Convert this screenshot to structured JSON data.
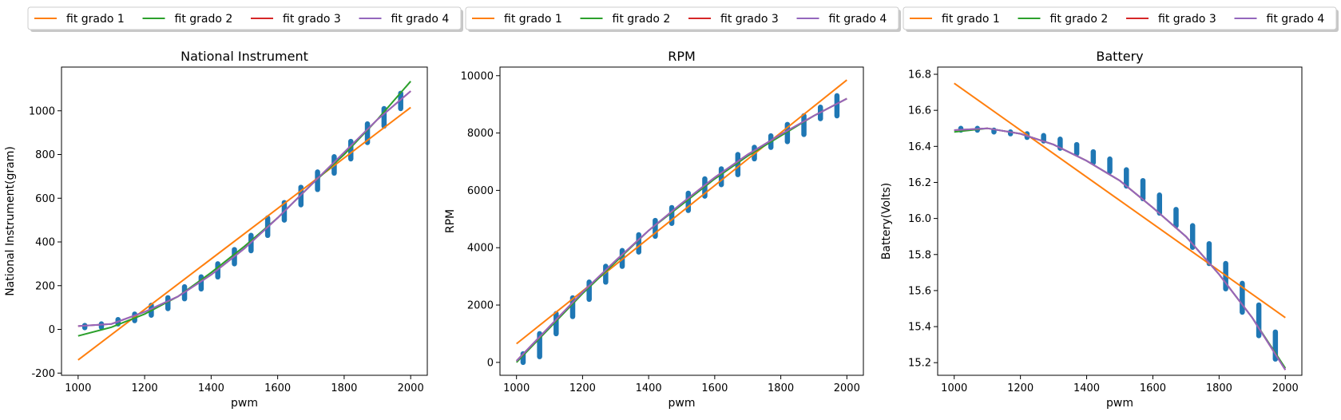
{
  "chart_data": [
    {
      "type": "scatter",
      "title": "National Instrument",
      "xlabel": "pwm",
      "ylabel": "National Instrument(gram)",
      "xlim": [
        950,
        2050
      ],
      "ylim": [
        -210,
        1200
      ],
      "xticks": [
        1000,
        1200,
        1400,
        1600,
        1800,
        2000
      ],
      "yticks": [
        -200,
        0,
        200,
        400,
        600,
        800,
        1000
      ],
      "scatter_points": [
        {
          "x": 1020,
          "y_min": 8,
          "y_max": 18
        },
        {
          "x": 1070,
          "y_min": 10,
          "y_max": 25
        },
        {
          "x": 1120,
          "y_min": 25,
          "y_max": 45
        },
        {
          "x": 1170,
          "y_min": 40,
          "y_max": 70
        },
        {
          "x": 1220,
          "y_min": 65,
          "y_max": 110
        },
        {
          "x": 1270,
          "y_min": 95,
          "y_max": 145
        },
        {
          "x": 1320,
          "y_min": 140,
          "y_max": 195
        },
        {
          "x": 1370,
          "y_min": 185,
          "y_max": 240
        },
        {
          "x": 1420,
          "y_min": 240,
          "y_max": 300
        },
        {
          "x": 1470,
          "y_min": 300,
          "y_max": 365
        },
        {
          "x": 1520,
          "y_min": 360,
          "y_max": 430
        },
        {
          "x": 1570,
          "y_min": 430,
          "y_max": 510
        },
        {
          "x": 1620,
          "y_min": 500,
          "y_max": 580
        },
        {
          "x": 1670,
          "y_min": 570,
          "y_max": 650
        },
        {
          "x": 1720,
          "y_min": 640,
          "y_max": 720
        },
        {
          "x": 1770,
          "y_min": 715,
          "y_max": 790
        },
        {
          "x": 1820,
          "y_min": 780,
          "y_max": 860
        },
        {
          "x": 1870,
          "y_min": 855,
          "y_max": 940
        },
        {
          "x": 1920,
          "y_min": 930,
          "y_max": 1010
        },
        {
          "x": 1970,
          "y_min": 1010,
          "y_max": 1080
        }
      ],
      "series": [
        {
          "name": "fit grado 1",
          "color": "#ff7f0e",
          "x": [
            1000,
            2000
          ],
          "y": [
            -140,
            1015
          ]
        },
        {
          "name": "fit grado 2",
          "color": "#2ca02c",
          "x": [
            1000,
            1100,
            1200,
            1300,
            1400,
            1500,
            1600,
            1700,
            1800,
            1900,
            2000
          ],
          "y": [
            -30,
            10,
            70,
            150,
            260,
            380,
            510,
            660,
            800,
            960,
            1135
          ]
        },
        {
          "name": "fit grado 3",
          "color": "#d62728",
          "x": [
            1000,
            1100,
            1200,
            1300,
            1400,
            1500,
            1600,
            1700,
            1800,
            1900,
            2000
          ],
          "y": [
            15,
            25,
            80,
            150,
            250,
            370,
            510,
            660,
            810,
            960,
            1090
          ]
        },
        {
          "name": "fit grado 4",
          "color": "#9467bd",
          "x": [
            1000,
            1100,
            1200,
            1300,
            1400,
            1500,
            1600,
            1700,
            1800,
            1900,
            2000
          ],
          "y": [
            15,
            25,
            80,
            150,
            250,
            370,
            510,
            660,
            810,
            960,
            1090
          ]
        }
      ]
    },
    {
      "type": "scatter",
      "title": "RPM",
      "xlabel": "pwm",
      "ylabel": "RPM",
      "xlim": [
        950,
        2050
      ],
      "ylim": [
        -450,
        10300
      ],
      "xticks": [
        1000,
        1200,
        1400,
        1600,
        1800,
        2000
      ],
      "yticks": [
        0,
        2000,
        4000,
        6000,
        8000,
        10000
      ],
      "scatter_points": [
        {
          "x": 1020,
          "y_min": 0,
          "y_max": 300
        },
        {
          "x": 1070,
          "y_min": 200,
          "y_max": 1000
        },
        {
          "x": 1120,
          "y_min": 1000,
          "y_max": 1700
        },
        {
          "x": 1170,
          "y_min": 1600,
          "y_max": 2250
        },
        {
          "x": 1220,
          "y_min": 2200,
          "y_max": 2800
        },
        {
          "x": 1270,
          "y_min": 2800,
          "y_max": 3350
        },
        {
          "x": 1320,
          "y_min": 3350,
          "y_max": 3900
        },
        {
          "x": 1370,
          "y_min": 3850,
          "y_max": 4450
        },
        {
          "x": 1420,
          "y_min": 4400,
          "y_max": 4950
        },
        {
          "x": 1470,
          "y_min": 4850,
          "y_max": 5400
        },
        {
          "x": 1520,
          "y_min": 5300,
          "y_max": 5900
        },
        {
          "x": 1570,
          "y_min": 5800,
          "y_max": 6400
        },
        {
          "x": 1620,
          "y_min": 6200,
          "y_max": 6750
        },
        {
          "x": 1670,
          "y_min": 6550,
          "y_max": 7250
        },
        {
          "x": 1720,
          "y_min": 7100,
          "y_max": 7500
        },
        {
          "x": 1770,
          "y_min": 7500,
          "y_max": 7900
        },
        {
          "x": 1820,
          "y_min": 7700,
          "y_max": 8300
        },
        {
          "x": 1870,
          "y_min": 7950,
          "y_max": 8600
        },
        {
          "x": 1920,
          "y_min": 8500,
          "y_max": 8900
        },
        {
          "x": 1970,
          "y_min": 8600,
          "y_max": 9300
        }
      ],
      "series": [
        {
          "name": "fit grado 1",
          "color": "#ff7f0e",
          "x": [
            1000,
            2000
          ],
          "y": [
            650,
            9850
          ]
        },
        {
          "name": "fit grado 2",
          "color": "#2ca02c",
          "x": [
            1000,
            1100,
            1200,
            1300,
            1400,
            1500,
            1600,
            1700,
            1800,
            1900,
            2000
          ],
          "y": [
            0,
            1200,
            2400,
            3500,
            4600,
            5500,
            6400,
            7200,
            7900,
            8600,
            9200
          ]
        },
        {
          "name": "fit grado 3",
          "color": "#d62728",
          "x": [
            1000,
            1100,
            1200,
            1300,
            1400,
            1500,
            1600,
            1700,
            1800,
            1900,
            2000
          ],
          "y": [
            50,
            1250,
            2450,
            3550,
            4600,
            5550,
            6450,
            7250,
            7950,
            8600,
            9200
          ]
        },
        {
          "name": "fit grado 4",
          "color": "#9467bd",
          "x": [
            1000,
            1100,
            1200,
            1300,
            1400,
            1500,
            1600,
            1700,
            1800,
            1900,
            2000
          ],
          "y": [
            50,
            1250,
            2450,
            3550,
            4600,
            5550,
            6450,
            7250,
            7950,
            8600,
            9200
          ]
        }
      ]
    },
    {
      "type": "scatter",
      "title": "Battery",
      "xlabel": "pwm",
      "ylabel": "Battery(Volts)",
      "xlim": [
        950,
        2050
      ],
      "ylim": [
        15.13,
        16.84
      ],
      "xticks": [
        1000,
        1200,
        1400,
        1600,
        1800,
        2000
      ],
      "yticks": [
        15.2,
        15.4,
        15.6,
        15.8,
        16.0,
        16.2,
        16.4,
        16.6,
        16.8
      ],
      "scatter_points": [
        {
          "x": 1020,
          "y_min": 16.49,
          "y_max": 16.5
        },
        {
          "x": 1070,
          "y_min": 16.49,
          "y_max": 16.5
        },
        {
          "x": 1120,
          "y_min": 16.48,
          "y_max": 16.49
        },
        {
          "x": 1170,
          "y_min": 16.47,
          "y_max": 16.48
        },
        {
          "x": 1220,
          "y_min": 16.45,
          "y_max": 16.47
        },
        {
          "x": 1270,
          "y_min": 16.43,
          "y_max": 16.46
        },
        {
          "x": 1320,
          "y_min": 16.39,
          "y_max": 16.44
        },
        {
          "x": 1370,
          "y_min": 16.36,
          "y_max": 16.41
        },
        {
          "x": 1420,
          "y_min": 16.31,
          "y_max": 16.37
        },
        {
          "x": 1470,
          "y_min": 16.26,
          "y_max": 16.33
        },
        {
          "x": 1520,
          "y_min": 16.18,
          "y_max": 16.27
        },
        {
          "x": 1570,
          "y_min": 16.11,
          "y_max": 16.21
        },
        {
          "x": 1620,
          "y_min": 16.03,
          "y_max": 16.13
        },
        {
          "x": 1670,
          "y_min": 15.96,
          "y_max": 16.05
        },
        {
          "x": 1720,
          "y_min": 15.84,
          "y_max": 15.96
        },
        {
          "x": 1770,
          "y_min": 15.75,
          "y_max": 15.86
        },
        {
          "x": 1820,
          "y_min": 15.61,
          "y_max": 15.75
        },
        {
          "x": 1870,
          "y_min": 15.48,
          "y_max": 15.64
        },
        {
          "x": 1920,
          "y_min": 15.35,
          "y_max": 15.52
        },
        {
          "x": 1970,
          "y_min": 15.22,
          "y_max": 15.37
        }
      ],
      "series": [
        {
          "name": "fit grado 1",
          "color": "#ff7f0e",
          "x": [
            1000,
            2000
          ],
          "y": [
            16.75,
            15.45
          ]
        },
        {
          "name": "fit grado 2",
          "color": "#2ca02c",
          "x": [
            1000,
            1100,
            1200,
            1300,
            1400,
            1500,
            1600,
            1700,
            1800,
            1900,
            2000
          ],
          "y": [
            16.48,
            16.5,
            16.47,
            16.41,
            16.32,
            16.21,
            16.06,
            15.9,
            15.69,
            15.45,
            15.17
          ]
        },
        {
          "name": "fit grado 3",
          "color": "#d62728",
          "x": [
            1000,
            1100,
            1200,
            1300,
            1400,
            1500,
            1600,
            1700,
            1800,
            1900,
            2000
          ],
          "y": [
            16.49,
            16.5,
            16.47,
            16.41,
            16.32,
            16.21,
            16.06,
            15.9,
            15.69,
            15.45,
            15.16
          ]
        },
        {
          "name": "fit grado 4",
          "color": "#9467bd",
          "x": [
            1000,
            1100,
            1200,
            1300,
            1400,
            1500,
            1600,
            1700,
            1800,
            1900,
            2000
          ],
          "y": [
            16.49,
            16.5,
            16.47,
            16.41,
            16.32,
            16.21,
            16.06,
            15.9,
            15.69,
            15.45,
            15.16
          ]
        }
      ]
    }
  ],
  "legend_placement": "above each subplot",
  "scatter_color": "#1f77b4"
}
